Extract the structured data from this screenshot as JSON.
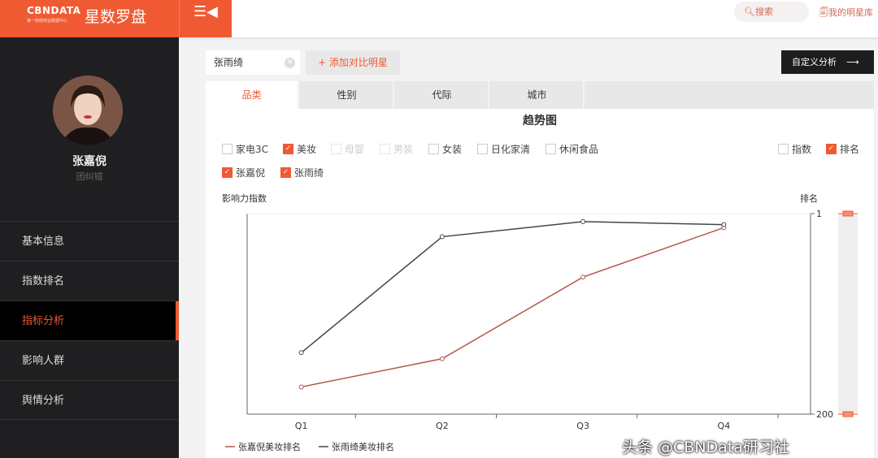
{
  "header": {
    "logo_brand": "CBNDATA",
    "logo_tagline": "第一财经商业数据中心",
    "logo_name": "星数罗盘",
    "menu_icon": "menu-collapse-icon",
    "search_label": "搜索",
    "my_stars_label": "我的明星库"
  },
  "sidebar": {
    "user_name": "张嘉倪",
    "user_group": "团纠错",
    "items": [
      {
        "label": "基本信息"
      },
      {
        "label": "指数排名"
      },
      {
        "label": "指标分析",
        "active": true
      },
      {
        "label": "影响人群"
      },
      {
        "label": "舆情分析"
      }
    ]
  },
  "toolbar": {
    "compare_value": "张雨绮",
    "add_label": "+ 添加对比明星",
    "custom_label": "自定义分析"
  },
  "tabs": [
    {
      "label": "品类",
      "active": true
    },
    {
      "label": "性别"
    },
    {
      "label": "代际"
    },
    {
      "label": "城市"
    }
  ],
  "filters": {
    "categories": [
      {
        "label": "家电3C",
        "checked": false
      },
      {
        "label": "美妆",
        "checked": true
      },
      {
        "label": "母婴",
        "checked": false,
        "disabled": true
      },
      {
        "label": "男装",
        "checked": false,
        "disabled": true
      },
      {
        "label": "女装",
        "checked": false
      },
      {
        "label": "日化家清",
        "checked": false
      },
      {
        "label": "休闲食品",
        "checked": false
      }
    ],
    "metrics": [
      {
        "label": "指数",
        "checked": false
      },
      {
        "label": "排名",
        "checked": true
      }
    ],
    "stars": [
      {
        "label": "张嘉倪",
        "checked": true
      },
      {
        "label": "张雨绮",
        "checked": true
      }
    ]
  },
  "colors": {
    "accent": "#f05a33",
    "series1": "#b5564a",
    "series2": "#3d4a4a"
  },
  "chart_data": {
    "type": "line",
    "title": "趋势图",
    "ylabel_left": "影响力指数",
    "ylabel_right": "排名",
    "categories": [
      "Q1",
      "Q2",
      "Q3",
      "Q4"
    ],
    "y_axis": {
      "min": 1,
      "max": 200,
      "inverted": true,
      "tick_labels": [
        "1",
        "200"
      ]
    },
    "legend_position": "bottom-left",
    "series": [
      {
        "name": "张嘉倪美妆排名",
        "color": "#b5564a",
        "values": [
          173,
          145,
          64,
          15
        ]
      },
      {
        "name": "张雨绮美妆排名",
        "color": "#3d4a4a",
        "values": [
          139,
          24,
          9,
          12
        ]
      }
    ]
  },
  "watermark": "头条 @CBNData研习社"
}
